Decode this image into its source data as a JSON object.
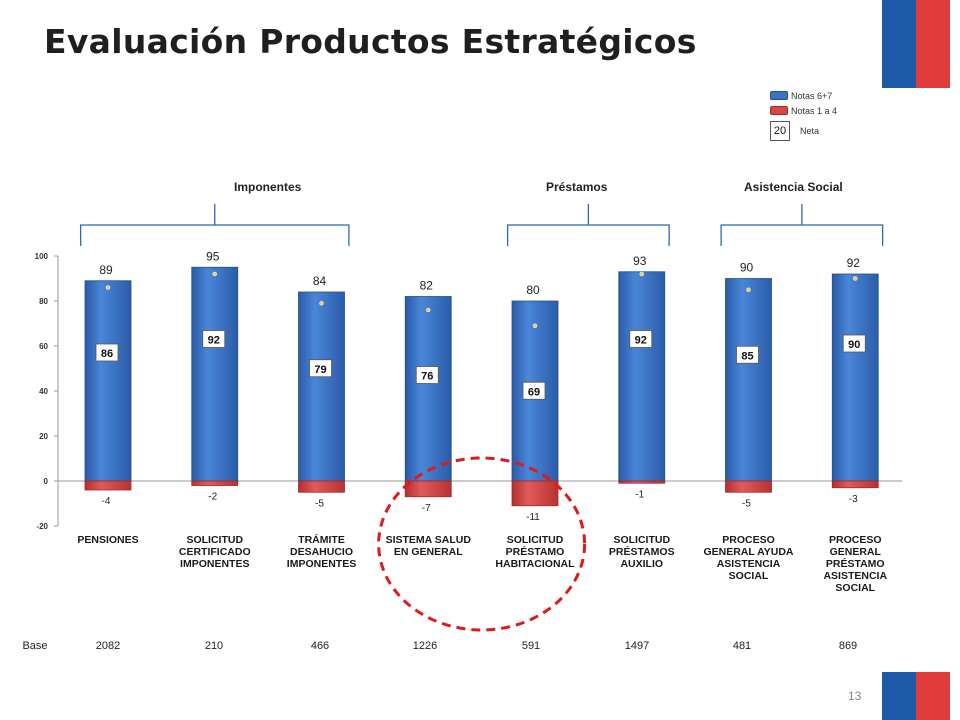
{
  "title": "Evaluación Productos Estratégicos",
  "legend": {
    "series1": "Notas 6+7",
    "series2": "Notas 1 a 4",
    "neta_example": "20",
    "neta_label": "Neta"
  },
  "groups": [
    "Imponentes",
    "Préstamos",
    "Asistencia Social"
  ],
  "base": {
    "label": "Base",
    "values": [
      "2082",
      "210",
      "466",
      "1226",
      "591",
      "1497",
      "481",
      "869"
    ]
  },
  "page_number": "13",
  "colors": {
    "positive": "#3a72c4",
    "negative": "#d84646",
    "highlight": "#e0191b",
    "flag_blue": "#1d5aa8",
    "flag_red": "#e03b3b"
  },
  "chart_data": {
    "type": "bar",
    "categories": [
      "PENSIONES",
      "SOLICITUD CERTIFICADO IMPONENTES",
      "TRÁMITE DESAHUCIO IMPONENTES",
      "SISTEMA SALUD EN GENERAL",
      "SOLICITUD PRÉSTAMO HABITACIONAL",
      "SOLICITUD PRÉSTAMOS AUXILIO",
      "PROCESO GENERAL AYUDA ASISTENCIA SOCIAL",
      "PROCESO GENERAL PRÉSTAMO ASISTENCIA SOCIAL"
    ],
    "category_lines": [
      [
        "PENSIONES"
      ],
      [
        "SOLICITUD",
        "CERTIFICADO",
        "IMPONENTES"
      ],
      [
        "TRÁMITE",
        "DESAHUCIO",
        "IMPONENTES"
      ],
      [
        "SISTEMA SALUD",
        "EN GENERAL"
      ],
      [
        "SOLICITUD",
        "PRÉSTAMO",
        "HABITACIONAL"
      ],
      [
        "SOLICITUD",
        "PRÉSTAMOS",
        "AUXILIO"
      ],
      [
        "PROCESO",
        "GENERAL AYUDA",
        "ASISTENCIA",
        "SOCIAL"
      ],
      [
        "PROCESO",
        "GENERAL",
        "PRÉSTAMO",
        "ASISTENCIA",
        "SOCIAL"
      ]
    ],
    "series": [
      {
        "name": "Notas 6+7",
        "values": [
          89,
          95,
          84,
          82,
          80,
          93,
          90,
          92
        ]
      },
      {
        "name": "Notas 1 a 4",
        "values": [
          -4,
          -2,
          -5,
          -7,
          -11,
          -1,
          -5,
          -3
        ]
      }
    ],
    "neta": [
      86,
      92,
      79,
      76,
      69,
      92,
      85,
      90
    ],
    "ylim": [
      -20,
      100
    ],
    "yticks": [
      -20,
      0,
      20,
      40,
      60,
      80,
      100
    ],
    "group_spans": [
      [
        0,
        2
      ],
      [
        4,
        5
      ],
      [
        6,
        7
      ]
    ],
    "highlight_categories": [
      3,
      4
    ],
    "grid": false,
    "legend_position": "top-right"
  }
}
